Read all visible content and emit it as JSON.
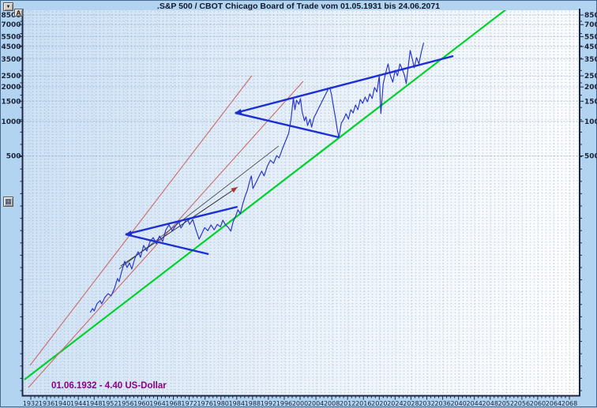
{
  "window": {
    "title": ".S&P 500 / CBOT Chicago Board of Trade vom 01.05.1931 bis 24.06.2071"
  },
  "toolbar": {
    "collapse_icon": "▼",
    "annotation_tool_label": "A",
    "chart_tool_icon": "▦"
  },
  "annotation": {
    "text": "01.06.1932 - 4.40 US-Dollar",
    "color": "#8B008B"
  },
  "colors": {
    "margin_background": "#b3d4f0",
    "price_line": "#2433cc",
    "pattern_line": "#1b2fd4",
    "long_term_trendline": "#00d22c",
    "channel_line": "#cc6b6b",
    "fan_line_1": "#5a5a5a",
    "fan_line_2": "#2e2e2e",
    "axis": "#1c2745",
    "annotation_text": "#8B008B"
  },
  "chart_data": {
    "type": "line",
    "title": ".S&P 500 / CBOT Chicago Board of Trade vom 01.05.1931 bis 24.06.2071",
    "xlabel": "",
    "ylabel": "",
    "x_axis": {
      "unit": "year",
      "range": [
        1931,
        2071
      ],
      "tick_step_years": 4,
      "minor_tick_step_years": 1,
      "tick_labels": [
        1932,
        1936,
        1940,
        1944,
        1948,
        1952,
        1956,
        1960,
        1964,
        1968,
        1972,
        1976,
        1980,
        1984,
        1988,
        1992,
        1996,
        2000,
        2004,
        2008,
        2012,
        2016,
        2020,
        2024,
        2028,
        2032,
        2036,
        2040,
        2044,
        2048,
        2052,
        2056,
        2060,
        2064,
        2068
      ]
    },
    "y_axis": {
      "scale": "log",
      "side": "both",
      "tick_labels": [
        8500,
        7000,
        5500,
        4500,
        3500,
        2500,
        2000,
        1500,
        1000,
        500
      ],
      "grid": true
    },
    "annotations": [
      {
        "text": "01.06.1932 - 4.40 US-Dollar",
        "x": 1938,
        "y": 4.4
      }
    ],
    "series": [
      {
        "name": "long-term-green-trendline",
        "color": "#00d22c",
        "width": 2.2,
        "arrow": null,
        "points": [
          [
            1930.4,
            5.55
          ],
          [
            2052.8,
            9970
          ]
        ]
      },
      {
        "name": "red-channel-upper",
        "color": "#cc6b6b",
        "width": 1.1,
        "arrow": null,
        "points": [
          [
            1931.8,
            7.39
          ],
          [
            1987.8,
            2502
          ]
        ]
      },
      {
        "name": "red-channel-lower",
        "color": "#cc6b6b",
        "width": 1.1,
        "arrow": null,
        "points": [
          [
            1931.4,
            4.74
          ],
          [
            2000.8,
            2239
          ]
        ]
      },
      {
        "name": "fan-trendline-long",
        "color": "#5a5a5a",
        "width": 1,
        "arrow": null,
        "points": [
          [
            1954.3,
            51.3
          ],
          [
            1994.6,
            610
          ]
        ]
      },
      {
        "name": "fan-trendline-short",
        "color": "#2e2e2e",
        "width": 1,
        "arrow": "end",
        "arrow_color": "#b03030",
        "points": [
          [
            1954.7,
            54.6
          ],
          [
            1984.2,
            267
          ]
        ]
      },
      {
        "name": "sp500-price",
        "color": "#2433cc",
        "width": 1.15,
        "arrow": null,
        "points": [
          [
            1947.0,
            21.4
          ],
          [
            1947.6,
            23.2
          ],
          [
            1948.0,
            22.1
          ],
          [
            1948.7,
            25.5
          ],
          [
            1949.5,
            27.2
          ],
          [
            1949.9,
            25.5
          ],
          [
            1950.7,
            29.0
          ],
          [
            1951.5,
            31.3
          ],
          [
            1952.3,
            29.9
          ],
          [
            1953.1,
            34.5
          ],
          [
            1953.9,
            42.4
          ],
          [
            1954.3,
            39.8
          ],
          [
            1954.7,
            45.1
          ],
          [
            1955.3,
            53.7
          ],
          [
            1955.7,
            60.0
          ],
          [
            1956.3,
            52.8
          ],
          [
            1956.9,
            58.1
          ],
          [
            1957.5,
            51.3
          ],
          [
            1958.3,
            64.0
          ],
          [
            1959.1,
            72.7
          ],
          [
            1959.7,
            65.0
          ],
          [
            1960.5,
            82.5
          ],
          [
            1961.3,
            73.8
          ],
          [
            1962.1,
            89.3
          ],
          [
            1962.9,
            96.7
          ],
          [
            1963.7,
            85.1
          ],
          [
            1964.5,
            99.8
          ],
          [
            1965.3,
            89.3
          ],
          [
            1966.1,
            113.0
          ],
          [
            1966.9,
            124.6
          ],
          [
            1967.7,
            110.5
          ],
          [
            1968.5,
            121.5
          ],
          [
            1969.3,
            134.5
          ],
          [
            1969.9,
            117.0
          ],
          [
            1970.7,
            129.0
          ],
          [
            1971.5,
            142.0
          ],
          [
            1972.1,
            126.0
          ],
          [
            1972.9,
            139.0
          ],
          [
            1973.7,
            113.0
          ],
          [
            1974.5,
            93.5
          ],
          [
            1975.1,
            103.0
          ],
          [
            1975.9,
            118.0
          ],
          [
            1976.7,
            111.0
          ],
          [
            1977.5,
            124.6
          ],
          [
            1978.3,
            113.0
          ],
          [
            1979.1,
            126.0
          ],
          [
            1979.9,
            120.0
          ],
          [
            1980.5,
            137.0
          ],
          [
            1981.1,
            126.0
          ],
          [
            1981.9,
            118.0
          ],
          [
            1982.5,
            110.0
          ],
          [
            1983.1,
            133.0
          ],
          [
            1983.7,
            148.0
          ],
          [
            1984.3,
            169.0
          ],
          [
            1984.9,
            156.0
          ],
          [
            1985.5,
            189.0
          ],
          [
            1986.1,
            221.0
          ],
          [
            1986.7,
            251.0
          ],
          [
            1987.3,
            303.0
          ],
          [
            1987.7,
            334.0
          ],
          [
            1988.1,
            259.0
          ],
          [
            1988.7,
            285.0
          ],
          [
            1989.5,
            324.0
          ],
          [
            1990.3,
            368.0
          ],
          [
            1990.9,
            334.0
          ],
          [
            1991.7,
            404.0
          ],
          [
            1992.5,
            458.0
          ],
          [
            1993.3,
            430.0
          ],
          [
            1994.1,
            503.0
          ],
          [
            1994.7,
            480.0
          ],
          [
            1995.5,
            573.0
          ],
          [
            1996.3,
            670.0
          ],
          [
            1997.1,
            785.0
          ],
          [
            1997.7,
            1046.0
          ],
          [
            1998.3,
            1607.0
          ],
          [
            1998.7,
            1265.0
          ],
          [
            1999.1,
            1530.0
          ],
          [
            1999.7,
            1412.0
          ],
          [
            2000.1,
            1582.0
          ],
          [
            2000.5,
            1225.0
          ],
          [
            2001.1,
            1013.0
          ],
          [
            2001.5,
            1097.0
          ],
          [
            2001.9,
            920.0
          ],
          [
            2002.5,
            1046.0
          ],
          [
            2002.9,
            891.0
          ],
          [
            2003.5,
            1080.0
          ],
          [
            2004.1,
            1186.0
          ],
          [
            2004.7,
            1306.0
          ],
          [
            2005.3,
            1436.0
          ],
          [
            2005.9,
            1582.0
          ],
          [
            2006.5,
            1737.0
          ],
          [
            2007.1,
            1910.0
          ],
          [
            2007.5,
            1975.0
          ],
          [
            2007.9,
            1737.0
          ],
          [
            2008.3,
            1436.0
          ],
          [
            2008.9,
            1080.0
          ],
          [
            2009.4,
            843.0
          ],
          [
            2009.8,
            726.0
          ],
          [
            2010.4,
            965.0
          ],
          [
            2011.0,
            1046.0
          ],
          [
            2011.6,
            1167.0
          ],
          [
            2012.2,
            1046.0
          ],
          [
            2012.8,
            1265.0
          ],
          [
            2013.4,
            1186.0
          ],
          [
            2014.0,
            1391.0
          ],
          [
            2014.6,
            1265.0
          ],
          [
            2015.2,
            1556.0
          ],
          [
            2015.8,
            1436.0
          ],
          [
            2016.4,
            1633.0
          ],
          [
            2017.0,
            1482.0
          ],
          [
            2017.6,
            1737.0
          ],
          [
            2018.2,
            1582.0
          ],
          [
            2018.8,
            1975.0
          ],
          [
            2019.4,
            1808.0
          ],
          [
            2020.0,
            2502.0
          ],
          [
            2020.4,
            1170.0
          ],
          [
            2021.0,
            2137.0
          ],
          [
            2021.6,
            2627.0
          ],
          [
            2022.2,
            3181.0
          ],
          [
            2022.8,
            2502.0
          ],
          [
            2023.4,
            2200.0
          ],
          [
            2024.0,
            2800.0
          ],
          [
            2024.6,
            2502.0
          ],
          [
            2025.2,
            3181.0
          ],
          [
            2025.8,
            2846.0
          ],
          [
            2026.4,
            2502.0
          ],
          [
            2026.8,
            2137.0
          ],
          [
            2027.4,
            3181.0
          ],
          [
            2027.8,
            4158.0
          ],
          [
            2028.4,
            3440.0
          ],
          [
            2028.8,
            2937.0
          ],
          [
            2029.4,
            3606.0
          ],
          [
            2030.0,
            3181.0
          ],
          [
            2030.6,
            4026.0
          ],
          [
            2031.2,
            4870.0
          ]
        ]
      },
      {
        "name": "broadening-pattern-small-upper",
        "color": "#1b2fd4",
        "width": 2.4,
        "arrow": "start",
        "points": [
          [
            1955.9,
            103
          ],
          [
            1984.2,
            179.5
          ]
        ]
      },
      {
        "name": "broadening-pattern-small-lower",
        "color": "#1b2fd4",
        "width": 2.4,
        "arrow": null,
        "points": [
          [
            1955.9,
            103
          ],
          [
            1976.9,
            69.3
          ]
        ]
      },
      {
        "name": "broadening-pattern-large-upper",
        "color": "#1b2fd4",
        "width": 2.4,
        "arrow": "start",
        "points": [
          [
            1983.6,
            1186
          ],
          [
            2038.7,
            3722
          ]
        ]
      },
      {
        "name": "broadening-pattern-large-lower",
        "color": "#1b2fd4",
        "width": 2.4,
        "arrow": null,
        "points": [
          [
            1983.6,
            1186
          ],
          [
            2009.8,
            726
          ]
        ]
      }
    ]
  }
}
